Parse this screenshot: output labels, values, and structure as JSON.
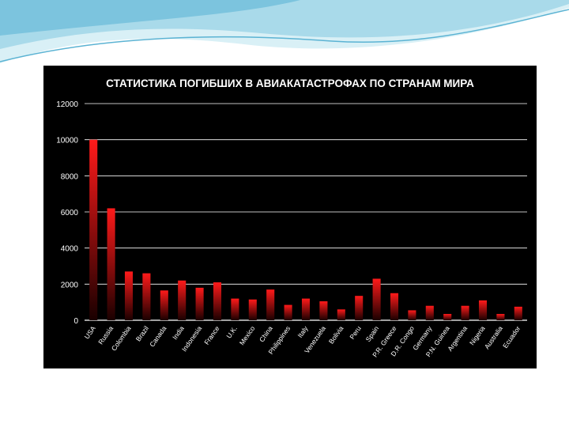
{
  "colors": {
    "panel_bg": "#000000",
    "bar_top": "#ff1a1a",
    "bar_bottom": "#1a0000",
    "gridline": "#ffffff",
    "text": "#ffffff",
    "wave_light": "#cfeaf3",
    "wave_mid": "#8fcde3",
    "wave_dark": "#5bb3d3"
  },
  "chart_data": {
    "type": "bar",
    "title": "СТАТИСТИКА ПОГИБШИХ В АВИАКАТАСТРОФАХ ПО СТРАНАМ МИРА",
    "xlabel": "",
    "ylabel": "",
    "ylim": [
      0,
      12000
    ],
    "yticks": [
      "0",
      "2000",
      "4000",
      "6000",
      "8000",
      "10000",
      "12000"
    ],
    "grid": true,
    "legend": "none",
    "categories": [
      "USA",
      "Russia",
      "Colombia",
      "Brazil",
      "Canada",
      "India",
      "Indonesia",
      "France",
      "U.K.",
      "Mexico",
      "China",
      "Philippines",
      "Italy",
      "Venezuela",
      "Bolivia",
      "Peru",
      "Spain",
      "P.R. Greece",
      "D.R. Congo",
      "Germany",
      "P.N. Guinea",
      "Argentina",
      "Nigeria",
      "Australia",
      "Ecuador"
    ],
    "values": [
      10000,
      6200,
      2700,
      2600,
      1650,
      2200,
      1800,
      2100,
      1200,
      1150,
      1700,
      850,
      1200,
      1050,
      600,
      1350,
      2300,
      1500,
      550,
      800,
      350,
      800,
      1100,
      350,
      750
    ]
  }
}
